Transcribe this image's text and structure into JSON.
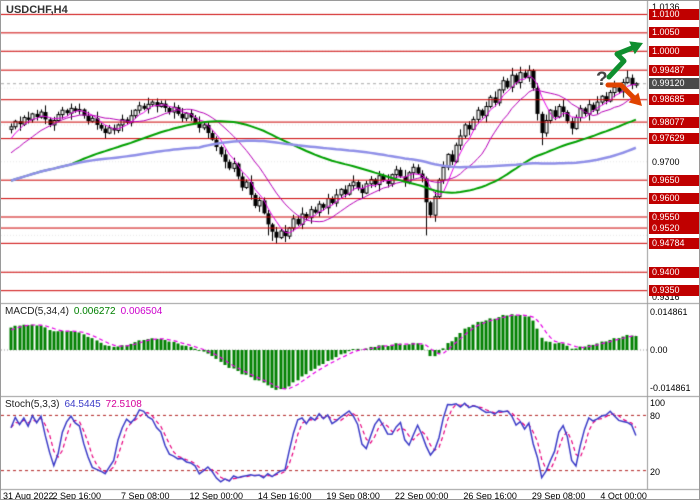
{
  "header": {
    "title": "USDCHF,H4"
  },
  "indicators": {
    "macd": {
      "label": "MACD(5,34,4)",
      "value_main": "0.006272",
      "value_signal": "0.006504"
    },
    "stoch": {
      "label": "Stoch(5,3,3)",
      "value_main": "64.5445",
      "value_signal": "72.5108"
    }
  },
  "annotations": {
    "question_mark": "?"
  },
  "colors": {
    "level_line": "#cc0000",
    "level_box": "#c00000",
    "bid_box": "#4a4a4a",
    "grid": "#e8e8e8",
    "bid_line": "#aaaaaa",
    "candle_up_fill": "#ffffff",
    "candle_down_fill": "#000000",
    "candle_border": "#000000",
    "macd_hist": "#008000",
    "macd_signal": "#e600e6",
    "macd_zero": "#999999",
    "stoch_main": "#3c3cc8",
    "stoch_signal": "#e8007e",
    "stoch_level": "#b22222",
    "up_arrow": "#0f8f2f",
    "down_arrow": "#e04300",
    "pane_border": "#9a9a9a"
  },
  "chart_data": {
    "type": "candlestick",
    "title": "USDCHF,H4",
    "symbol": "USDCHF",
    "timeframe": "H4",
    "price_axis": {
      "top": 1.01365,
      "bottom": 0.93165,
      "ticks": [
        {
          "text": "1.0136",
          "price": 1.01365
        },
        {
          "text": "0.9700",
          "price": 0.97
        },
        {
          "text": "0.9316",
          "price": 0.93165
        }
      ],
      "levels": [
        {
          "text": "1.0100",
          "price": 1.01
        },
        {
          "text": "1.0050",
          "price": 1.005
        },
        {
          "text": "1.0000",
          "price": 1.0
        },
        {
          "text": "0.99487",
          "price": 0.99487
        },
        {
          "text": "0.98685",
          "price": 0.98685
        },
        {
          "text": "0.98077",
          "price": 0.98077
        },
        {
          "text": "0.97629",
          "price": 0.97629
        },
        {
          "text": "0.9650",
          "price": 0.965
        },
        {
          "text": "0.9600",
          "price": 0.96
        },
        {
          "text": "0.9550",
          "price": 0.955
        },
        {
          "text": "0.9520",
          "price": 0.952
        },
        {
          "text": "0.94784",
          "price": 0.94784
        },
        {
          "text": "0.9400",
          "price": 0.94
        },
        {
          "text": "0.9350",
          "price": 0.935
        }
      ],
      "bid": {
        "text": "0.99120",
        "price": 0.9912
      }
    },
    "time_axis": {
      "labels": [
        {
          "text": "31 Aug 2022",
          "bar": 0
        },
        {
          "text": "2 Sep 16:00",
          "bar": 16
        },
        {
          "text": "7 Sep 08:00",
          "bar": 32
        },
        {
          "text": "12 Sep 00:00",
          "bar": 48
        },
        {
          "text": "14 Sep 16:00",
          "bar": 64
        },
        {
          "text": "19 Sep 08:00",
          "bar": 80
        },
        {
          "text": "22 Sep 00:00",
          "bar": 96
        },
        {
          "text": "26 Sep 16:00",
          "bar": 112
        },
        {
          "text": "29 Sep 08:00",
          "bar": 128
        },
        {
          "text": "4 Oct 00:00",
          "bar": 144
        }
      ]
    },
    "overlays": {
      "moving_averages": [
        {
          "period": 5,
          "color": "#e600e6",
          "width": 1
        },
        {
          "period": 14,
          "color": "#b800b8",
          "width": 1
        },
        {
          "period": 55,
          "color": "#00a000",
          "width": 2
        },
        {
          "period": 85,
          "color": "#9090e8",
          "width": 2.5
        }
      ]
    },
    "indicator_panes": {
      "macd": {
        "fast": 5,
        "slow": 34,
        "signal": 4,
        "range": 0.018,
        "axis": [
          {
            "text": "0.014861",
            "value": 0.014861
          },
          {
            "text": "0.00",
            "value": 0
          },
          {
            "text": "-0.014861",
            "value": -0.014861
          }
        ]
      },
      "stoch": {
        "k": 5,
        "slowing": 3,
        "d": 3,
        "levels": [
          80,
          20
        ],
        "axis": [
          {
            "text": "100",
            "value": 100
          },
          {
            "text": "80",
            "value": 80
          },
          {
            "text": "20",
            "value": 20
          }
        ]
      }
    },
    "prehistory_closes": [
      0.9545,
      0.9556,
      0.955,
      0.9565,
      0.9572,
      0.956,
      0.9578,
      0.9585,
      0.9575,
      0.9592,
      0.96,
      0.959,
      0.9608,
      0.9615,
      0.9605,
      0.9622,
      0.963,
      0.9618,
      0.9638,
      0.9645,
      0.9635,
      0.9652,
      0.966,
      0.9648,
      0.9668,
      0.9675,
      0.9665,
      0.9684,
      0.9692,
      0.968,
      0.97,
      0.971,
      0.9698,
      0.9718,
      0.9728,
      0.9715,
      0.9735,
      0.9748,
      0.976,
      0.9775
    ],
    "candles": [
      [
        0.9788,
        0.9804,
        0.9777,
        0.9795
      ],
      [
        0.9795,
        0.9814,
        0.9788,
        0.981
      ],
      [
        0.981,
        0.9823,
        0.9784,
        0.9802
      ],
      [
        0.9802,
        0.9826,
        0.9797,
        0.982
      ],
      [
        0.982,
        0.9836,
        0.9804,
        0.9814
      ],
      [
        0.9814,
        0.9833,
        0.9806,
        0.983
      ],
      [
        0.983,
        0.9841,
        0.9812,
        0.9821
      ],
      [
        0.9821,
        0.9842,
        0.9817,
        0.9835
      ],
      [
        0.9835,
        0.9853,
        0.9802,
        0.9815
      ],
      [
        0.9815,
        0.982,
        0.9794,
        0.98
      ],
      [
        0.98,
        0.9822,
        0.9784,
        0.9812
      ],
      [
        0.9812,
        0.9836,
        0.9809,
        0.9828
      ],
      [
        0.9828,
        0.9849,
        0.9817,
        0.984
      ],
      [
        0.984,
        0.9844,
        0.9825,
        0.9832
      ],
      [
        0.9832,
        0.9858,
        0.9814,
        0.9845
      ],
      [
        0.9845,
        0.9851,
        0.9833,
        0.9838
      ],
      [
        0.9838,
        0.9858,
        0.9828,
        0.9842
      ],
      [
        0.9842,
        0.9845,
        0.9817,
        0.9825
      ],
      [
        0.9825,
        0.9836,
        0.9801,
        0.981
      ],
      [
        0.981,
        0.9825,
        0.9806,
        0.9818
      ],
      [
        0.9818,
        0.9836,
        0.9787,
        0.98
      ],
      [
        0.98,
        0.9805,
        0.9784,
        0.979
      ],
      [
        0.979,
        0.98,
        0.9762,
        0.9778
      ],
      [
        0.9778,
        0.98,
        0.9775,
        0.9792
      ],
      [
        0.9792,
        0.9801,
        0.9774,
        0.9785
      ],
      [
        0.9785,
        0.9804,
        0.9778,
        0.98
      ],
      [
        0.98,
        0.9828,
        0.9782,
        0.9815
      ],
      [
        0.9815,
        0.9821,
        0.9801,
        0.9806
      ],
      [
        0.9806,
        0.9841,
        0.9796,
        0.9825
      ],
      [
        0.9825,
        0.9843,
        0.9817,
        0.984
      ],
      [
        0.984,
        0.9863,
        0.9831,
        0.9852
      ],
      [
        0.9852,
        0.9859,
        0.984,
        0.9844
      ],
      [
        0.9844,
        0.9874,
        0.9831,
        0.9856
      ],
      [
        0.9856,
        0.9867,
        0.985,
        0.9862
      ],
      [
        0.9862,
        0.9872,
        0.9834,
        0.985
      ],
      [
        0.985,
        0.9866,
        0.9847,
        0.9858
      ],
      [
        0.9858,
        0.9867,
        0.9835,
        0.9846
      ],
      [
        0.9846,
        0.985,
        0.9828,
        0.9835
      ],
      [
        0.9835,
        0.9861,
        0.9817,
        0.9848
      ],
      [
        0.9848,
        0.9854,
        0.9825,
        0.983
      ],
      [
        0.983,
        0.9846,
        0.9808,
        0.9818
      ],
      [
        0.9818,
        0.9835,
        0.981,
        0.9832
      ],
      [
        0.9832,
        0.9843,
        0.9811,
        0.982
      ],
      [
        0.982,
        0.9827,
        0.9801,
        0.9805
      ],
      [
        0.9805,
        0.9823,
        0.9779,
        0.9792
      ],
      [
        0.9792,
        0.9805,
        0.9786,
        0.98
      ],
      [
        0.98,
        0.981,
        0.9762,
        0.9778
      ],
      [
        0.9778,
        0.9786,
        0.9757,
        0.976
      ],
      [
        0.976,
        0.9769,
        0.9729,
        0.974
      ],
      [
        0.974,
        0.9744,
        0.9713,
        0.972
      ],
      [
        0.972,
        0.9733,
        0.9682,
        0.97
      ],
      [
        0.97,
        0.9706,
        0.9677,
        0.9682
      ],
      [
        0.9682,
        0.9711,
        0.9672,
        0.9695
      ],
      [
        0.9695,
        0.9698,
        0.9652,
        0.966
      ],
      [
        0.966,
        0.9671,
        0.9621,
        0.963
      ],
      [
        0.963,
        0.9652,
        0.9626,
        0.9645
      ],
      [
        0.9645,
        0.9663,
        0.9597,
        0.961
      ],
      [
        0.961,
        0.9615,
        0.9574,
        0.958
      ],
      [
        0.958,
        0.9605,
        0.9564,
        0.9595
      ],
      [
        0.9595,
        0.9603,
        0.9557,
        0.956
      ],
      [
        0.956,
        0.9569,
        0.95,
        0.953
      ],
      [
        0.953,
        0.9534,
        0.9485,
        0.951
      ],
      [
        0.951,
        0.9523,
        0.9478,
        0.9494
      ],
      [
        0.9494,
        0.9518,
        0.949,
        0.9512
      ],
      [
        0.9512,
        0.9528,
        0.9482,
        0.9498
      ],
      [
        0.9498,
        0.9523,
        0.949,
        0.952
      ],
      [
        0.952,
        0.9556,
        0.9511,
        0.9545
      ],
      [
        0.9545,
        0.9552,
        0.9526,
        0.953
      ],
      [
        0.953,
        0.9576,
        0.9517,
        0.9558
      ],
      [
        0.9558,
        0.9563,
        0.9542,
        0.9548
      ],
      [
        0.9548,
        0.958,
        0.9532,
        0.957
      ],
      [
        0.957,
        0.9578,
        0.9559,
        0.9562
      ],
      [
        0.9562,
        0.9594,
        0.9551,
        0.9585
      ],
      [
        0.9585,
        0.9589,
        0.9568,
        0.9575
      ],
      [
        0.9575,
        0.9613,
        0.9557,
        0.96
      ],
      [
        0.96,
        0.9606,
        0.9583,
        0.9588
      ],
      [
        0.9588,
        0.9626,
        0.9578,
        0.961
      ],
      [
        0.961,
        0.9628,
        0.9602,
        0.9625
      ],
      [
        0.9625,
        0.9636,
        0.9603,
        0.9612
      ],
      [
        0.9612,
        0.9642,
        0.9608,
        0.9635
      ],
      [
        0.9635,
        0.9663,
        0.9622,
        0.9645
      ],
      [
        0.9645,
        0.965,
        0.9622,
        0.9628
      ],
      [
        0.9628,
        0.9638,
        0.9599,
        0.9615
      ],
      [
        0.9615,
        0.9648,
        0.9612,
        0.964
      ],
      [
        0.964,
        0.9661,
        0.9629,
        0.9652
      ],
      [
        0.9652,
        0.9656,
        0.9631,
        0.9638
      ],
      [
        0.9638,
        0.9675,
        0.962,
        0.9662
      ],
      [
        0.9662,
        0.9668,
        0.9645,
        0.965
      ],
      [
        0.965,
        0.9666,
        0.963,
        0.964
      ],
      [
        0.964,
        0.9668,
        0.9632,
        0.9665
      ],
      [
        0.9665,
        0.9689,
        0.9656,
        0.9678
      ],
      [
        0.9678,
        0.9685,
        0.9656,
        0.966
      ],
      [
        0.966,
        0.9678,
        0.9632,
        0.9645
      ],
      [
        0.9645,
        0.9675,
        0.9639,
        0.967
      ],
      [
        0.967,
        0.9695,
        0.9654,
        0.9685
      ],
      [
        0.9685,
        0.9693,
        0.9665,
        0.9668
      ],
      [
        0.9668,
        0.9677,
        0.9644,
        0.9655
      ],
      [
        0.9655,
        0.966,
        0.95,
        0.959
      ],
      [
        0.959,
        0.9594,
        0.9548,
        0.9555
      ],
      [
        0.9555,
        0.9618,
        0.9537,
        0.9605
      ],
      [
        0.9605,
        0.9656,
        0.96,
        0.965
      ],
      [
        0.965,
        0.9701,
        0.964,
        0.9685
      ],
      [
        0.9685,
        0.9723,
        0.9677,
        0.972
      ],
      [
        0.972,
        0.9731,
        0.9691,
        0.97
      ],
      [
        0.97,
        0.9752,
        0.9696,
        0.9745
      ],
      [
        0.9745,
        0.9788,
        0.9732,
        0.977
      ],
      [
        0.977,
        0.9805,
        0.9764,
        0.98
      ],
      [
        0.98,
        0.981,
        0.9772,
        0.9788
      ],
      [
        0.9788,
        0.9823,
        0.9785,
        0.9815
      ],
      [
        0.9815,
        0.9849,
        0.9804,
        0.984
      ],
      [
        0.984,
        0.9844,
        0.9818,
        0.9825
      ],
      [
        0.9825,
        0.9863,
        0.9807,
        0.985
      ],
      [
        0.985,
        0.9881,
        0.9845,
        0.9875
      ],
      [
        0.9875,
        0.9891,
        0.985,
        0.986
      ],
      [
        0.986,
        0.9898,
        0.9852,
        0.9895
      ],
      [
        0.9895,
        0.9931,
        0.9886,
        0.992
      ],
      [
        0.992,
        0.9927,
        0.9898,
        0.9902
      ],
      [
        0.9902,
        0.9955,
        0.9889,
        0.9935
      ],
      [
        0.9935,
        0.994,
        0.9909,
        0.9915
      ],
      [
        0.9915,
        0.9958,
        0.9899,
        0.9942
      ],
      [
        0.9942,
        0.995,
        0.9925,
        0.9928
      ],
      [
        0.9928,
        0.9962,
        0.9917,
        0.9948
      ],
      [
        0.9948,
        0.9952,
        0.9893,
        0.99
      ],
      [
        0.99,
        0.9913,
        0.9812,
        0.983
      ],
      [
        0.983,
        0.9836,
        0.9745,
        0.9778
      ],
      [
        0.9778,
        0.9828,
        0.9768,
        0.9812
      ],
      [
        0.9812,
        0.9843,
        0.9804,
        0.984
      ],
      [
        0.984,
        0.9851,
        0.9813,
        0.9822
      ],
      [
        0.9822,
        0.9857,
        0.9818,
        0.985
      ],
      [
        0.985,
        0.9868,
        0.9822,
        0.9835
      ],
      [
        0.9835,
        0.984,
        0.9804,
        0.981
      ],
      [
        0.981,
        0.982,
        0.9774,
        0.979
      ],
      [
        0.979,
        0.9828,
        0.9787,
        0.982
      ],
      [
        0.982,
        0.9854,
        0.9809,
        0.9845
      ],
      [
        0.9845,
        0.9849,
        0.9823,
        0.983
      ],
      [
        0.983,
        0.9868,
        0.9812,
        0.9855
      ],
      [
        0.9855,
        0.9861,
        0.9835,
        0.984
      ],
      [
        0.984,
        0.9878,
        0.983,
        0.9862
      ],
      [
        0.9862,
        0.9881,
        0.9854,
        0.9878
      ],
      [
        0.9878,
        0.9889,
        0.9856,
        0.9865
      ],
      [
        0.9865,
        0.9895,
        0.9861,
        0.9888
      ],
      [
        0.9888,
        0.992,
        0.9875,
        0.9902
      ],
      [
        0.9902,
        0.9907,
        0.9884,
        0.989
      ],
      [
        0.989,
        0.9925,
        0.9874,
        0.9915
      ],
      [
        0.9915,
        0.9948,
        0.9912,
        0.9928
      ],
      [
        0.9928,
        0.9937,
        0.9897,
        0.9908
      ],
      [
        0.9908,
        0.9916,
        0.9901,
        0.9912
      ]
    ]
  }
}
